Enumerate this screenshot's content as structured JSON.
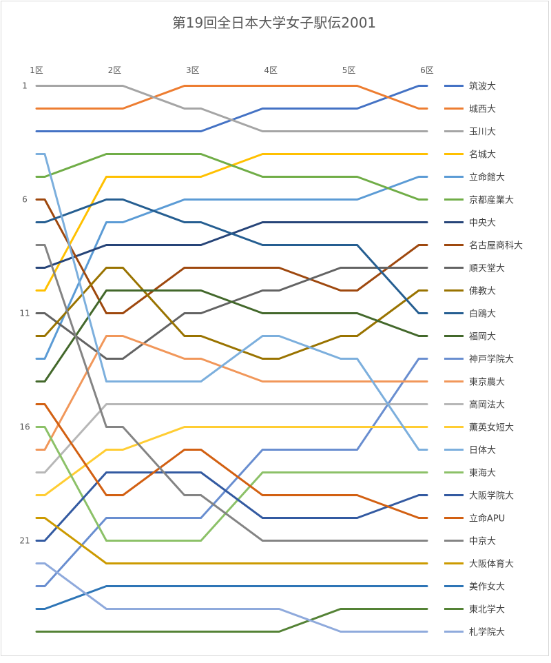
{
  "chart_data": {
    "type": "line",
    "title": "第19回全日本大学女子駅伝2001",
    "categories": [
      "1区",
      "2区",
      "3区",
      "4区",
      "5区",
      "6区"
    ],
    "y_tick_labels": [
      "1",
      "6",
      "11",
      "16",
      "21"
    ],
    "y_ticks": [
      1,
      6,
      11,
      16,
      21
    ],
    "ylim": [
      1,
      25
    ],
    "y_reversed": true,
    "grid": false,
    "legend_position": "right",
    "series": [
      {
        "name": "筑波大",
        "color": "#4472C4",
        "values": [
          3,
          3,
          3,
          2,
          2,
          1
        ]
      },
      {
        "name": "城西大",
        "color": "#ED7D31",
        "values": [
          2,
          2,
          1,
          1,
          1,
          2
        ]
      },
      {
        "name": "玉川大",
        "color": "#A5A5A5",
        "values": [
          1,
          1,
          2,
          3,
          3,
          3
        ]
      },
      {
        "name": "名城大",
        "color": "#FFC000",
        "values": [
          10,
          5,
          5,
          4,
          4,
          4
        ]
      },
      {
        "name": "立命館大",
        "color": "#5B9BD5",
        "values": [
          13,
          7,
          6,
          6,
          6,
          5
        ]
      },
      {
        "name": "京都産業大",
        "color": "#70AD47",
        "values": [
          5,
          4,
          4,
          5,
          5,
          6
        ]
      },
      {
        "name": "中央大",
        "color": "#264478",
        "values": [
          9,
          8,
          8,
          7,
          7,
          7
        ]
      },
      {
        "name": "名古屋商科大",
        "color": "#9E480E",
        "values": [
          6,
          11,
          9,
          9,
          10,
          8
        ]
      },
      {
        "name": "順天堂大",
        "color": "#636363",
        "values": [
          11,
          13,
          11,
          10,
          9,
          9
        ]
      },
      {
        "name": "佛教大",
        "color": "#997300",
        "values": [
          12,
          9,
          12,
          13,
          12,
          10
        ]
      },
      {
        "name": "白鴎大",
        "color": "#255E91",
        "values": [
          7,
          6,
          7,
          8,
          8,
          11
        ]
      },
      {
        "name": "福岡大",
        "color": "#43682B",
        "values": [
          14,
          10,
          10,
          11,
          11,
          12
        ]
      },
      {
        "name": "神戸学院大",
        "color": "#698ED0",
        "values": [
          23,
          20,
          20,
          17,
          17,
          13
        ]
      },
      {
        "name": "東京農大",
        "color": "#F1975A",
        "values": [
          17,
          12,
          13,
          14,
          14,
          14
        ]
      },
      {
        "name": "高岡法大",
        "color": "#B7B7B7",
        "values": [
          18,
          15,
          15,
          15,
          15,
          15
        ]
      },
      {
        "name": "薫英女短大",
        "color": "#FFCD33",
        "values": [
          19,
          17,
          16,
          16,
          16,
          16
        ]
      },
      {
        "name": "日体大",
        "color": "#7CAFDD",
        "values": [
          4,
          14,
          14,
          12,
          13,
          17
        ]
      },
      {
        "name": "東海大",
        "color": "#8CC168",
        "values": [
          16,
          21,
          21,
          18,
          18,
          18
        ]
      },
      {
        "name": "大阪学院大",
        "color": "#335AA1",
        "values": [
          21,
          18,
          18,
          20,
          20,
          19
        ]
      },
      {
        "name": "立命APU",
        "color": "#D26012",
        "values": [
          15,
          19,
          17,
          19,
          19,
          20
        ]
      },
      {
        "name": "中京大",
        "color": "#848484",
        "values": [
          8,
          16,
          19,
          21,
          21,
          21
        ]
      },
      {
        "name": "大阪体育大",
        "color": "#CC9A00",
        "values": [
          20,
          22,
          22,
          22,
          22,
          22
        ]
      },
      {
        "name": "美作女大",
        "color": "#2E75B6",
        "values": [
          24,
          23,
          23,
          23,
          23,
          23
        ]
      },
      {
        "name": "東北学大",
        "color": "#548235",
        "values": [
          25,
          25,
          25,
          25,
          24,
          24
        ]
      },
      {
        "name": "札学院大",
        "color": "#8FAADC",
        "values": [
          22,
          24,
          24,
          24,
          25,
          25
        ]
      }
    ]
  }
}
